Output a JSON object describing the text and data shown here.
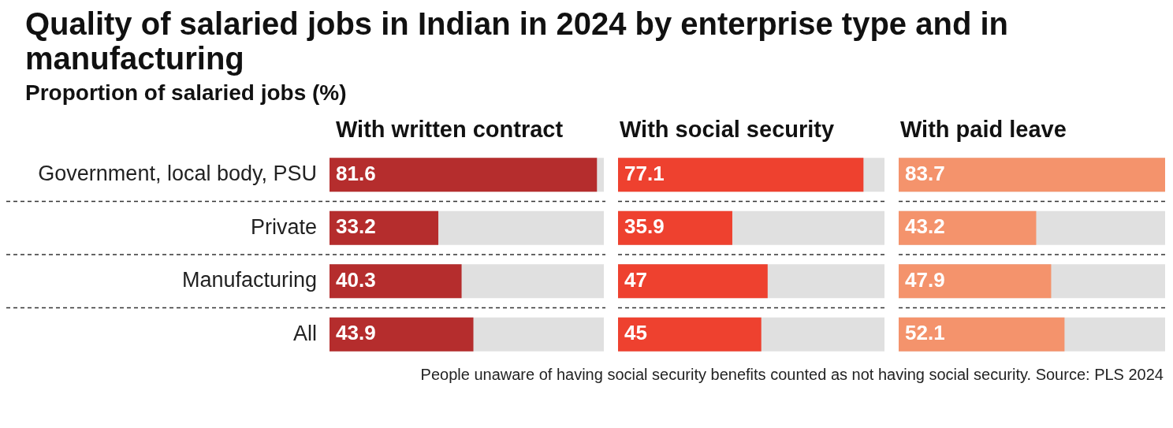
{
  "chart_data": [
    {
      "type": "bar",
      "title": "Quality of salaried jobs in Indian in 2024 by enterprise type and in manufacturing",
      "subtitle": "Proportion of salaried jobs (%)",
      "orientation": "horizontal",
      "categories": [
        "Government, local body, PSU",
        "Private",
        "Manufacturing",
        "All"
      ],
      "series": [
        {
          "name": "With written contract",
          "color": "#b52d2d",
          "values": [
            81.6,
            33.2,
            40.3,
            43.9
          ]
        }
      ],
      "xlim": [
        0,
        83.7
      ],
      "tick_labels": "y",
      "grid": "y",
      "data_labels": true,
      "annotations": [
        "People unaware of having social security benefits counted as not having social security. Source: PLS 2024"
      ]
    },
    {
      "type": "bar",
      "orientation": "horizontal",
      "categories": [
        null,
        null,
        null,
        null
      ],
      "series": [
        {
          "name": "With social security",
          "color": "#ee412f",
          "values": [
            77.1,
            35.9,
            47,
            45
          ]
        }
      ],
      "xlim": [
        0,
        83.7
      ],
      "tick_labels": false,
      "grid": "y",
      "data_labels": true
    },
    {
      "type": "bar",
      "orientation": "horizontal",
      "categories": [
        null,
        null,
        null,
        null
      ],
      "series": [
        {
          "name": "With paid leave",
          "color": "#f4936c",
          "values": [
            83.7,
            43.2,
            47.9,
            52.1
          ]
        }
      ],
      "xlim": [
        0,
        83.7
      ],
      "tick_labels": false,
      "grid": "y",
      "data_labels": true
    }
  ]
}
